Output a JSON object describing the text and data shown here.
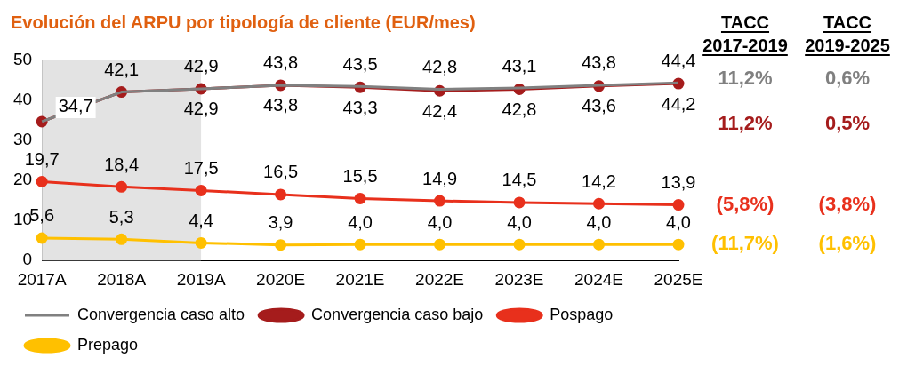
{
  "chart_data": {
    "type": "line",
    "title": "Evolución del ARPU por tipología de cliente (EUR/mes)",
    "categories": [
      "2017A",
      "2018A",
      "2019A",
      "2020E",
      "2021E",
      "2022E",
      "2023E",
      "2024E",
      "2025E"
    ],
    "series": [
      {
        "name": "Convergencia caso alto",
        "color": "#808080",
        "marker": "none",
        "values": [
          34.7,
          42.1,
          42.9,
          43.8,
          43.5,
          42.8,
          43.1,
          43.8,
          44.4
        ],
        "value_labels": [
          "34,7",
          "42,1",
          "42,9",
          "43,8",
          "43,5",
          "42,8",
          "43,1",
          "43,8",
          "44,4"
        ]
      },
      {
        "name": "Convergencia caso bajo",
        "color": "#a51c1c",
        "marker": "circle",
        "values": [
          34.7,
          42.1,
          42.9,
          43.8,
          43.3,
          42.4,
          42.8,
          43.6,
          44.2
        ],
        "value_labels": [
          null,
          null,
          "42,9",
          "43,8",
          "43,3",
          "42,4",
          "42,8",
          "43,6",
          "44,2"
        ]
      },
      {
        "name": "Pospago",
        "color": "#e8301c",
        "marker": "circle",
        "values": [
          19.7,
          18.4,
          17.5,
          16.5,
          15.5,
          14.9,
          14.5,
          14.2,
          13.9
        ],
        "value_labels": [
          "19,7",
          "18,4",
          "17,5",
          "16,5",
          "15,5",
          "14,9",
          "14,5",
          "14,2",
          "13,9"
        ]
      },
      {
        "name": "Prepago",
        "color": "#ffc000",
        "marker": "circle",
        "values": [
          5.6,
          5.3,
          4.4,
          3.9,
          4.0,
          4.0,
          4.0,
          4.0,
          4.0
        ],
        "value_labels": [
          "5,6",
          "5,3",
          "4,4",
          "3,9",
          "4,0",
          "4,0",
          "4,0",
          "4,0",
          "4,0"
        ]
      }
    ],
    "ylim": [
      0,
      50
    ],
    "yticks": [
      0,
      10,
      20,
      30,
      40,
      50
    ],
    "grid": false,
    "legend": "bottom",
    "bands": [
      {
        "axis": "x",
        "from": "2017A",
        "to": "2019A",
        "color": "#e3e3e3"
      }
    ],
    "annotations": [
      "TACC 2017-2019",
      "TACC 2019-2025",
      "11,2%",
      "0,6%",
      "11,2%",
      "0,5%",
      "(5,8%)",
      "(3,8%)",
      "(11,7%)",
      "(1,6%)"
    ]
  }
}
